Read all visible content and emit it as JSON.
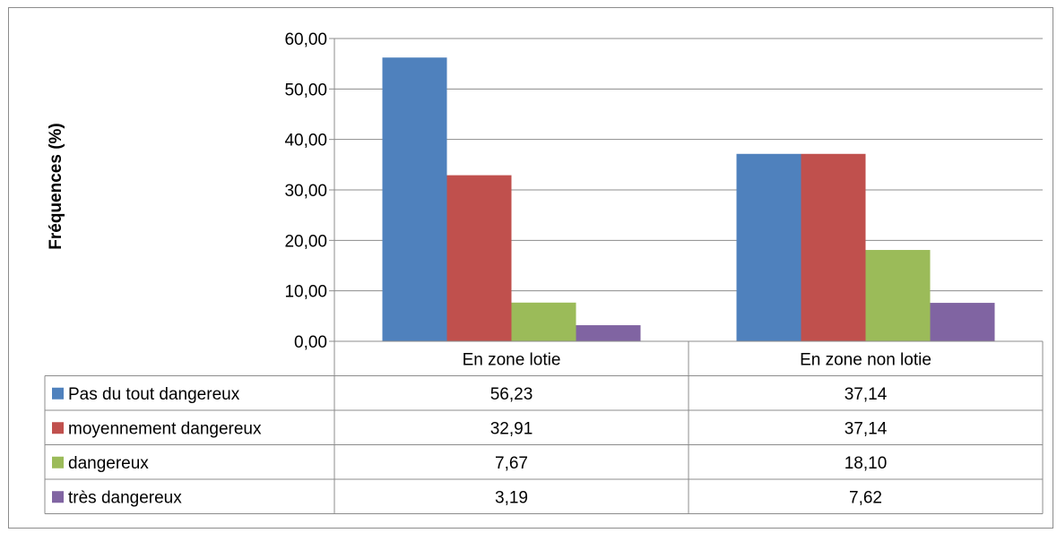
{
  "chart_data": {
    "type": "bar",
    "ylabel": "Fréquences (%)",
    "ylim": [
      0,
      60
    ],
    "yticks": [
      "0,00",
      "10,00",
      "20,00",
      "30,00",
      "40,00",
      "50,00",
      "60,00"
    ],
    "grid": true,
    "legend": "data-table",
    "categories": [
      "En zone lotie",
      "En zone non lotie"
    ],
    "series": [
      {
        "name": "Pas du tout dangereux",
        "color": "#4f81bd",
        "values": [
          56.23,
          37.14
        ],
        "labels": [
          "56,23",
          "37,14"
        ]
      },
      {
        "name": "moyennement dangereux",
        "color": "#c0504d",
        "values": [
          32.91,
          37.14
        ],
        "labels": [
          "32,91",
          "37,14"
        ]
      },
      {
        "name": "dangereux",
        "color": "#9bbb59",
        "values": [
          7.67,
          18.1
        ],
        "labels": [
          "7,67",
          "18,10"
        ]
      },
      {
        "name": "très dangereux",
        "color": "#8064a2",
        "values": [
          3.19,
          7.62
        ],
        "labels": [
          "3,19",
          "7,62"
        ]
      }
    ]
  }
}
